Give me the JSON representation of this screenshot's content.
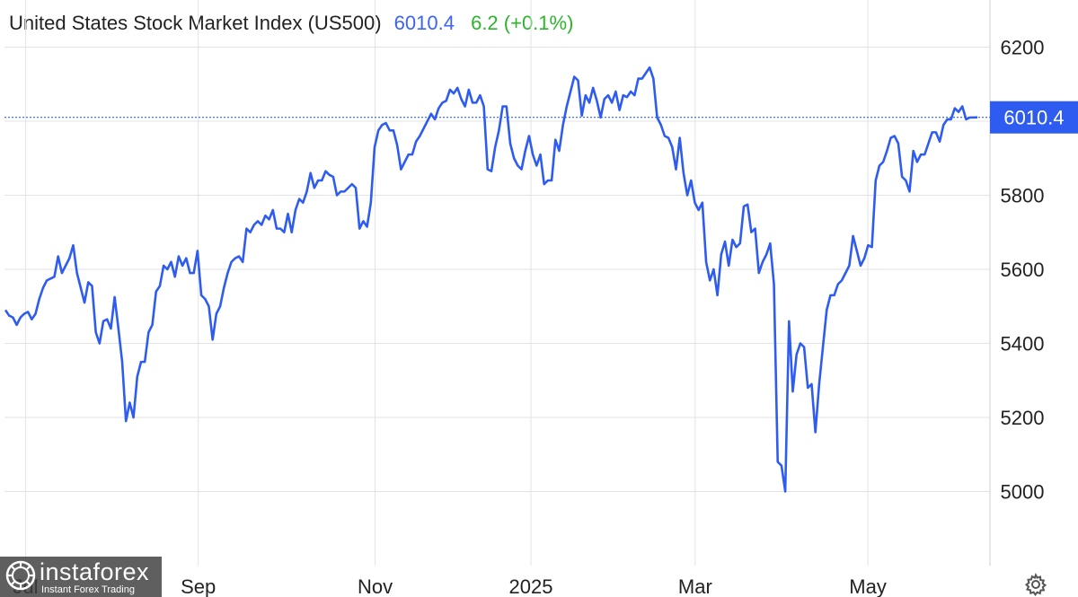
{
  "header": {
    "title": "United States Stock Market Index (US500)",
    "price": "6010.4",
    "change": "6.2 (+0.1%)"
  },
  "colors": {
    "line": "#2f5cf0",
    "price": "#3d63f2",
    "change": "#2bb52b",
    "grid": "#e3e3e3",
    "label_bg": "#2f5cf0"
  },
  "icons": {
    "settings": "gear-icon",
    "watermark_logo": "instaforex-logo"
  },
  "watermark": {
    "name": "instaforex",
    "tagline": "Instant Forex Trading"
  },
  "chart_data": {
    "type": "line",
    "title": "United States Stock Market Index (US500)",
    "xlabel": "",
    "ylabel": "",
    "ylim": [
      4800,
      6260
    ],
    "yticks": [
      5000,
      5200,
      5400,
      5600,
      5800,
      6000,
      6200
    ],
    "xticks": [
      {
        "label": "Jul",
        "x": 5
      },
      {
        "label": "Sep",
        "x": 46
      },
      {
        "label": "Nov",
        "x": 88
      },
      {
        "label": "2025",
        "x": 125
      },
      {
        "label": "Mar",
        "x": 164
      },
      {
        "label": "May",
        "x": 205
      }
    ],
    "xlim": [
      0,
      234
    ],
    "current_value": 6010.4,
    "current_value_label": "6010.4",
    "grid": true,
    "legend": "none",
    "series": [
      {
        "values": [
          5490,
          5475,
          5470,
          5450,
          5470,
          5480,
          5485,
          5465,
          5480,
          5520,
          5550,
          5570,
          5575,
          5580,
          5635,
          5590,
          5610,
          5630,
          5665,
          5590,
          5550,
          5510,
          5565,
          5555,
          5430,
          5400,
          5460,
          5465,
          5440,
          5525,
          5440,
          5350,
          5190,
          5240,
          5200,
          5310,
          5350,
          5350,
          5430,
          5450,
          5540,
          5555,
          5610,
          5600,
          5620,
          5580,
          5635,
          5610,
          5630,
          5590,
          5590,
          5650,
          5530,
          5520,
          5500,
          5410,
          5480,
          5500,
          5550,
          5590,
          5620,
          5630,
          5635,
          5620,
          5710,
          5700,
          5720,
          5730,
          5720,
          5745,
          5735,
          5760,
          5710,
          5710,
          5700,
          5750,
          5700,
          5760,
          5790,
          5780,
          5810,
          5860,
          5820,
          5840,
          5840,
          5865,
          5855,
          5850,
          5800,
          5810,
          5810,
          5820,
          5830,
          5820,
          5710,
          5730,
          5715,
          5780,
          5930,
          5975,
          5990,
          5995,
          5975,
          5975,
          5935,
          5870,
          5890,
          5910,
          5910,
          5945,
          5960,
          5980,
          6000,
          6020,
          6005,
          6035,
          6050,
          6055,
          6085,
          6075,
          6090,
          6060,
          6040,
          6085,
          6050,
          6050,
          6070,
          6040,
          5870,
          5865,
          5930,
          5975,
          6040,
          6040,
          5940,
          5900,
          5880,
          5870,
          5920,
          5960,
          5910,
          5880,
          5910,
          5830,
          5840,
          5840,
          5950,
          5920,
          5990,
          6040,
          6080,
          6120,
          6110,
          6015,
          6070,
          6050,
          6090,
          6055,
          6010,
          6060,
          6070,
          6050,
          6080,
          6030,
          6070,
          6065,
          6080,
          6070,
          6115,
          6115,
          6130,
          6145,
          6115,
          6010,
          5990,
          5960,
          5955,
          5930,
          5870,
          5955,
          5860,
          5800,
          5840,
          5780,
          5760,
          5780,
          5620,
          5570,
          5600,
          5530,
          5640,
          5675,
          5610,
          5680,
          5660,
          5670,
          5770,
          5775,
          5700,
          5710,
          5590,
          5620,
          5640,
          5670,
          5560,
          5080,
          5070,
          5000,
          5460,
          5270,
          5370,
          5400,
          5390,
          5280,
          5290,
          5160,
          5290,
          5390,
          5490,
          5530,
          5530,
          5560,
          5570,
          5590,
          5610,
          5690,
          5650,
          5610,
          5630,
          5665,
          5660,
          5840,
          5880,
          5890,
          5920,
          5955,
          5960,
          5940,
          5850,
          5840,
          5810,
          5920,
          5890,
          5910,
          5910,
          5940,
          5970,
          5970,
          5945,
          5990,
          6005,
          6005,
          6035,
          6025,
          6040,
          6005,
          6010,
          6010,
          6010.4
        ]
      }
    ]
  }
}
